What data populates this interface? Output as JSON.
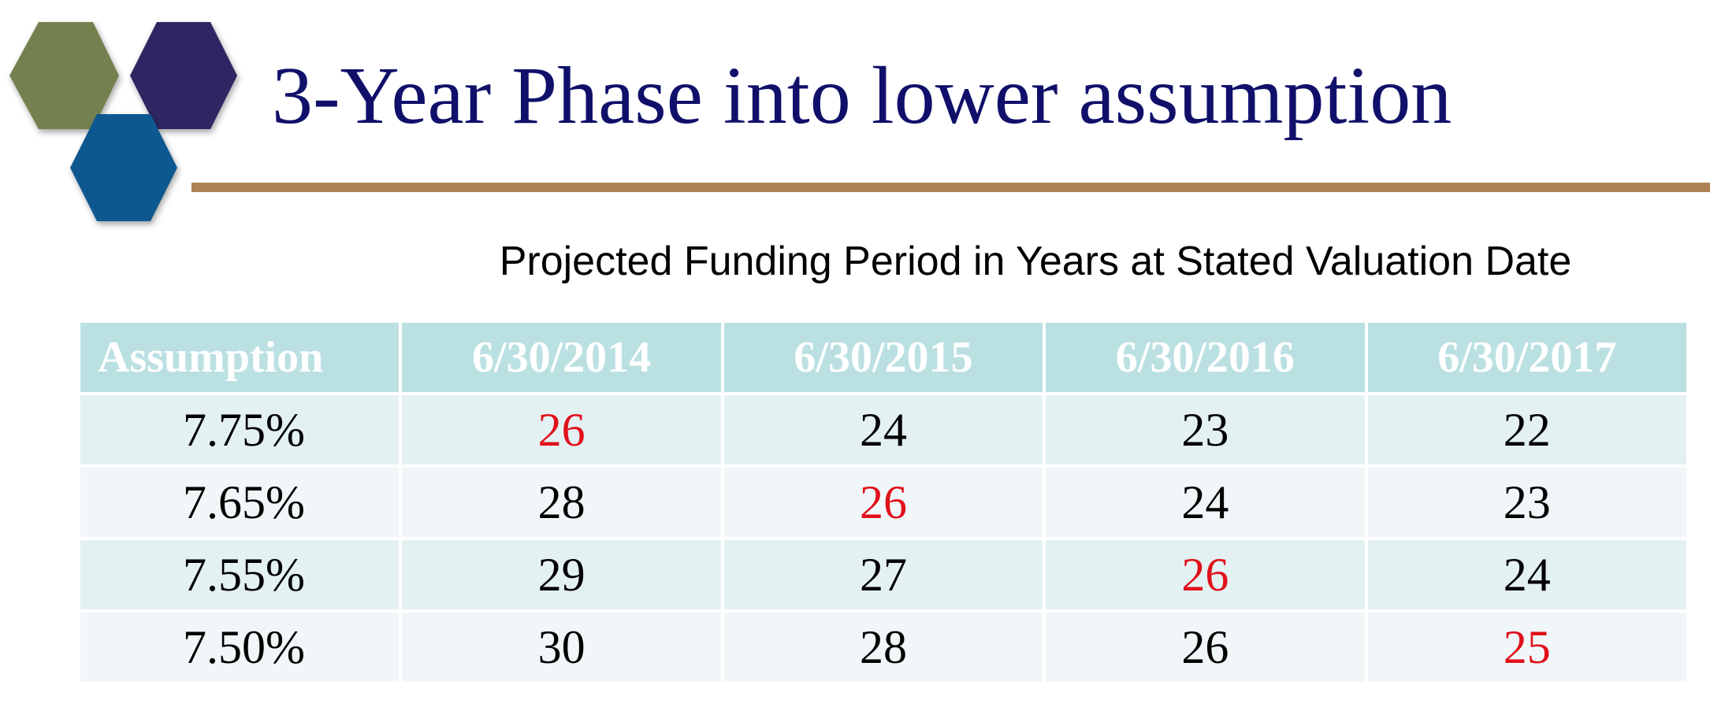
{
  "slide": {
    "title": "3-Year Phase into lower assumption",
    "subtitle": "Projected Funding Period in Years at Stated Valuation Date",
    "colors": {
      "title": "#10106b",
      "rule": "#ad8354",
      "header_bg": "#bbe0e2",
      "highlight": "#e0101a",
      "logo_green": "#74804f",
      "logo_purple": "#2f2563",
      "logo_blue": "#0a5890"
    },
    "logo_icon": "three-hexagons-logo"
  },
  "table": {
    "headers": [
      "Assumption",
      "6/30/2014",
      "6/30/2015",
      "6/30/2016",
      "6/30/2017"
    ],
    "rows": [
      {
        "assumption": "7.75%",
        "values": [
          "26",
          "24",
          "23",
          "22"
        ],
        "highlight_index": 0
      },
      {
        "assumption": "7.65%",
        "values": [
          "28",
          "26",
          "24",
          "23"
        ],
        "highlight_index": 1
      },
      {
        "assumption": "7.55%",
        "values": [
          "29",
          "27",
          "26",
          "24"
        ],
        "highlight_index": 2
      },
      {
        "assumption": "7.50%",
        "values": [
          "30",
          "28",
          "26",
          "25"
        ],
        "highlight_index": 3
      }
    ]
  }
}
